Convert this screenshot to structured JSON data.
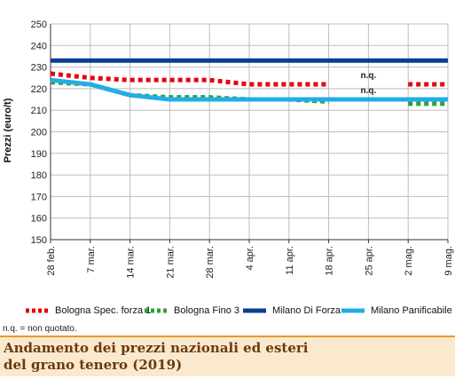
{
  "chart_data": {
    "type": "line",
    "ylabel": "Prezzi (euro/t)",
    "xlabel": "",
    "title": "Andamento dei prezzi nazionali ed esteri del grano tenero (2019)",
    "ylim": [
      150,
      250
    ],
    "yticks": [
      150,
      160,
      170,
      180,
      190,
      200,
      210,
      220,
      230,
      240,
      250
    ],
    "categories": [
      "28 feb.",
      "7 mar.",
      "14 mar.",
      "21 mar.",
      "28 mar.",
      "4 apr.",
      "11 apr.",
      "18 apr.",
      "25 apr.",
      "2 mag.",
      "9 mag."
    ],
    "grid": true,
    "legend_position": "bottom",
    "series": [
      {
        "name": "Bologna Spec. forza 1",
        "color": "#e30613",
        "style": "dotted",
        "values": [
          227,
          225,
          224,
          224,
          224,
          222,
          222,
          222,
          null,
          222,
          222
        ]
      },
      {
        "name": "Bologna Fino 3",
        "color": "#2e9e3e",
        "style": "dotted",
        "values": [
          223,
          222,
          217,
          216,
          216,
          215,
          215,
          214,
          null,
          213,
          213
        ]
      },
      {
        "name": "Milano Di Forza",
        "color": "#0b3f8f",
        "style": "solid",
        "values": [
          233,
          233,
          233,
          233,
          233,
          233,
          233,
          233,
          233,
          233,
          233
        ]
      },
      {
        "name": "Milano Panificabile",
        "color": "#22aee5",
        "style": "solid",
        "values": [
          224,
          222,
          217,
          215,
          215,
          215,
          215,
          215,
          215,
          215,
          215
        ]
      }
    ],
    "annotations": [
      {
        "text": "n.q.",
        "x_index": 8,
        "y": 225
      },
      {
        "text": "n.q.",
        "x_index": 8,
        "y": 218
      }
    ]
  },
  "note": "n.q. = non quotato.",
  "title_lines": [
    "Andamento dei prezzi nazionali ed esteri",
    "del grano tenero (2019)"
  ]
}
